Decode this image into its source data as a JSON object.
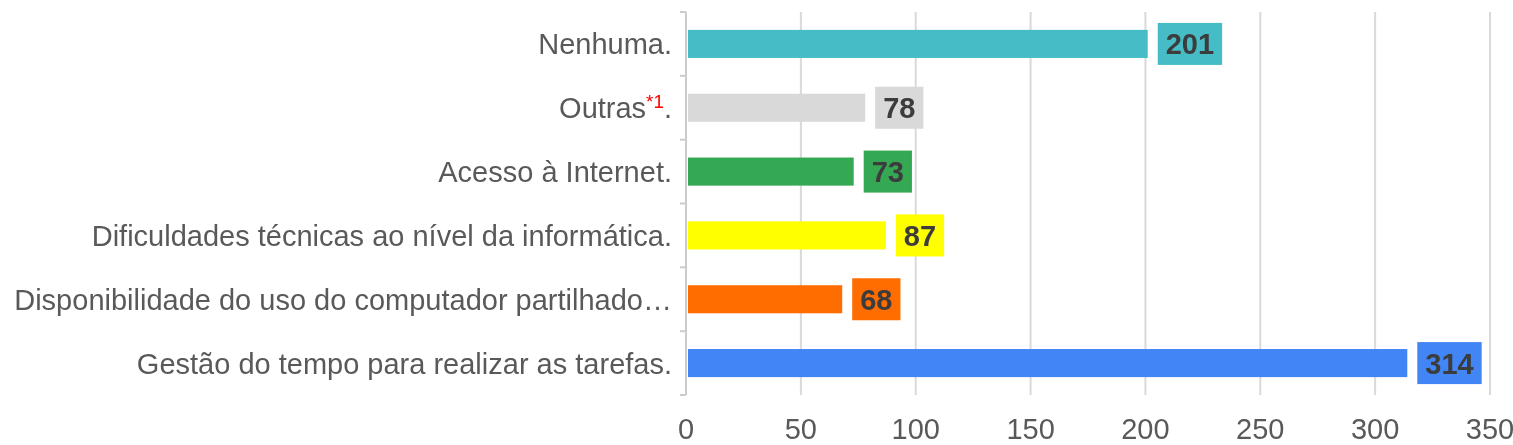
{
  "chart_data": {
    "type": "bar",
    "orientation": "horizontal",
    "categories": [
      "Nenhuma.",
      "Outras$^{*1}$.",
      "Acesso à Internet.",
      "Dificuldades técnicas ao nível da informática.",
      "Disponibilidade do uso do computador partilhado…",
      "Gestão do tempo para realizar as tarefas."
    ],
    "values": [
      201,
      78,
      73,
      87,
      68,
      314
    ],
    "colors": [
      "#46bdc6",
      "#d9d9d9",
      "#34a853",
      "#ffff00",
      "#ff6d01",
      "#4285f4"
    ],
    "xlim": [
      0,
      350
    ],
    "xticks": [
      0,
      50,
      100,
      150,
      200,
      250,
      300,
      350
    ],
    "grid": "x",
    "data_labels": true
  }
}
